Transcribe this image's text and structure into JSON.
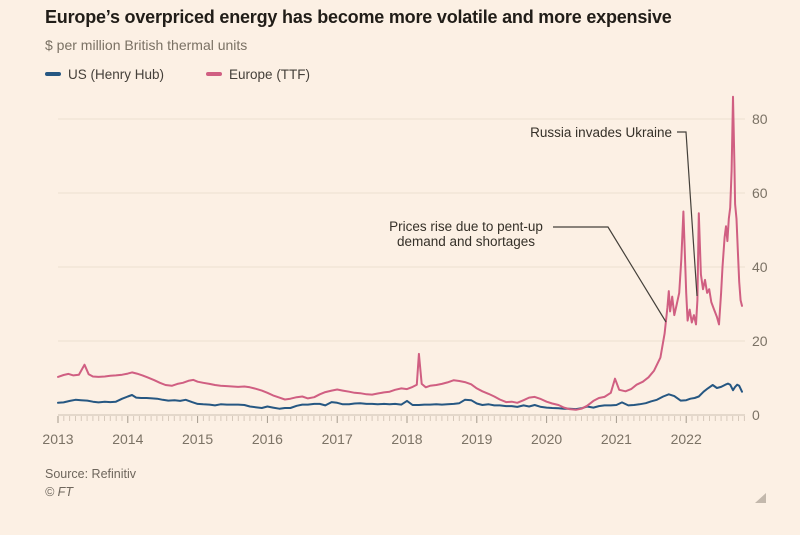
{
  "title": "Europe’s overpriced energy has become more volatile and more expensive",
  "subtitle": "$ per million British thermal units",
  "legend": {
    "us": {
      "label": "US (Henry Hub)",
      "color": "#265782"
    },
    "europe": {
      "label": "Europe (TTF)",
      "color": "#d05f82"
    }
  },
  "annotations": {
    "russia": {
      "text": "Russia invades Ukraine"
    },
    "pent_up": {
      "line1": "Prices rise due to pent-up",
      "line2": "demand and shortages"
    }
  },
  "source": "Source: Refinitiv",
  "credit": "© FT",
  "colors": {
    "background": "#fcf0e4",
    "gridline": "#ecdfd1",
    "zero_line": "#cdc0b2",
    "tick_minor": "#d6c9bb",
    "tick_year": "#a39a8d",
    "axis_label": "#7b7265",
    "annotation_line": "#44403a"
  },
  "chart_data": {
    "type": "line",
    "title": "Europe’s overpriced energy has become more volatile and more expensive",
    "ylabel": "$ per million British thermal units",
    "xlabel": "",
    "xlim": [
      2013,
      2022.8
    ],
    "ylim": [
      0,
      88
    ],
    "yticks": [
      0,
      20,
      40,
      60,
      80
    ],
    "xticks": [
      2013,
      2014,
      2015,
      2016,
      2017,
      2018,
      2019,
      2020,
      2021,
      2022
    ],
    "grid": "horizontal",
    "legend_position": "top-left",
    "annotations": [
      {
        "text": "Russia invades Ukraine",
        "points_to": {
          "x": 2022.05,
          "y": 31
        }
      },
      {
        "text": "Prices rise due to pent-up demand and shortages",
        "points_to": {
          "x": 2021.7,
          "y": 25
        }
      }
    ],
    "series": [
      {
        "name": "US (Henry Hub)",
        "color": "#265782",
        "points": [
          [
            2013,
            3.3
          ],
          [
            2013.08,
            3.4
          ],
          [
            2013.17,
            3.8
          ],
          [
            2013.25,
            4.1
          ],
          [
            2013.33,
            4
          ],
          [
            2013.42,
            3.9
          ],
          [
            2013.5,
            3.6
          ],
          [
            2013.58,
            3.4
          ],
          [
            2013.67,
            3.6
          ],
          [
            2013.75,
            3.5
          ],
          [
            2013.83,
            3.6
          ],
          [
            2013.92,
            4.4
          ],
          [
            2014,
            5
          ],
          [
            2014.06,
            5.4
          ],
          [
            2014.12,
            4.7
          ],
          [
            2014.19,
            4.6
          ],
          [
            2014.27,
            4.6
          ],
          [
            2014.35,
            4.5
          ],
          [
            2014.42,
            4.4
          ],
          [
            2014.5,
            4.1
          ],
          [
            2014.58,
            3.9
          ],
          [
            2014.67,
            4
          ],
          [
            2014.75,
            3.8
          ],
          [
            2014.83,
            4.1
          ],
          [
            2014.92,
            3.5
          ],
          [
            2015,
            3
          ],
          [
            2015.08,
            2.9
          ],
          [
            2015.17,
            2.8
          ],
          [
            2015.25,
            2.6
          ],
          [
            2015.33,
            2.9
          ],
          [
            2015.42,
            2.8
          ],
          [
            2015.5,
            2.8
          ],
          [
            2015.58,
            2.8
          ],
          [
            2015.67,
            2.7
          ],
          [
            2015.75,
            2.3
          ],
          [
            2015.83,
            2.1
          ],
          [
            2015.92,
            1.9
          ],
          [
            2016,
            2.3
          ],
          [
            2016.08,
            2
          ],
          [
            2016.17,
            1.7
          ],
          [
            2016.25,
            1.9
          ],
          [
            2016.33,
            1.9
          ],
          [
            2016.42,
            2.5
          ],
          [
            2016.5,
            2.8
          ],
          [
            2016.58,
            2.8
          ],
          [
            2016.67,
            3
          ],
          [
            2016.75,
            3
          ],
          [
            2016.83,
            2.6
          ],
          [
            2016.92,
            3.5
          ],
          [
            2017,
            3.3
          ],
          [
            2017.08,
            2.9
          ],
          [
            2017.17,
            2.9
          ],
          [
            2017.25,
            3.1
          ],
          [
            2017.33,
            3.2
          ],
          [
            2017.42,
            3
          ],
          [
            2017.5,
            3
          ],
          [
            2017.58,
            2.9
          ],
          [
            2017.67,
            3
          ],
          [
            2017.75,
            2.9
          ],
          [
            2017.83,
            3
          ],
          [
            2017.92,
            2.8
          ],
          [
            2018,
            3.8
          ],
          [
            2018.08,
            2.7
          ],
          [
            2018.17,
            2.7
          ],
          [
            2018.25,
            2.8
          ],
          [
            2018.33,
            2.8
          ],
          [
            2018.42,
            2.9
          ],
          [
            2018.5,
            2.8
          ],
          [
            2018.58,
            2.9
          ],
          [
            2018.67,
            3
          ],
          [
            2018.75,
            3.2
          ],
          [
            2018.83,
            4.1
          ],
          [
            2018.92,
            4
          ],
          [
            2019,
            3.1
          ],
          [
            2019.08,
            2.7
          ],
          [
            2019.17,
            2.9
          ],
          [
            2019.25,
            2.6
          ],
          [
            2019.33,
            2.6
          ],
          [
            2019.42,
            2.4
          ],
          [
            2019.5,
            2.4
          ],
          [
            2019.58,
            2.2
          ],
          [
            2019.67,
            2.6
          ],
          [
            2019.75,
            2.3
          ],
          [
            2019.83,
            2.7
          ],
          [
            2019.92,
            2.2
          ],
          [
            2020,
            2
          ],
          [
            2020.08,
            1.9
          ],
          [
            2020.17,
            1.8
          ],
          [
            2020.25,
            1.7
          ],
          [
            2020.33,
            1.7
          ],
          [
            2020.42,
            1.6
          ],
          [
            2020.5,
            1.8
          ],
          [
            2020.58,
            2.3
          ],
          [
            2020.67,
            2
          ],
          [
            2020.75,
            2.4
          ],
          [
            2020.83,
            2.6
          ],
          [
            2020.92,
            2.6
          ],
          [
            2021,
            2.7
          ],
          [
            2021.08,
            3.4
          ],
          [
            2021.17,
            2.6
          ],
          [
            2021.25,
            2.7
          ],
          [
            2021.33,
            2.9
          ],
          [
            2021.42,
            3.2
          ],
          [
            2021.5,
            3.7
          ],
          [
            2021.58,
            4.1
          ],
          [
            2021.67,
            5
          ],
          [
            2021.75,
            5.6
          ],
          [
            2021.83,
            5.1
          ],
          [
            2021.92,
            3.9
          ],
          [
            2022,
            4
          ],
          [
            2022.06,
            4.4
          ],
          [
            2022.12,
            4.6
          ],
          [
            2022.18,
            5
          ],
          [
            2022.25,
            6.3
          ],
          [
            2022.31,
            7.2
          ],
          [
            2022.38,
            8.1
          ],
          [
            2022.44,
            7.3
          ],
          [
            2022.5,
            7.6
          ],
          [
            2022.56,
            8.2
          ],
          [
            2022.6,
            8.5
          ],
          [
            2022.63,
            8.2
          ],
          [
            2022.67,
            6.7
          ],
          [
            2022.7,
            7.6
          ],
          [
            2022.73,
            8.2
          ],
          [
            2022.76,
            7.9
          ],
          [
            2022.8,
            6.3
          ]
        ]
      },
      {
        "name": "Europe (TTF)",
        "color": "#d05f82",
        "points": [
          [
            2013,
            10.3
          ],
          [
            2013.08,
            10.8
          ],
          [
            2013.15,
            11.1
          ],
          [
            2013.22,
            10.7
          ],
          [
            2013.3,
            10.9
          ],
          [
            2013.38,
            13.6
          ],
          [
            2013.44,
            11
          ],
          [
            2013.5,
            10.4
          ],
          [
            2013.58,
            10.3
          ],
          [
            2013.67,
            10.4
          ],
          [
            2013.75,
            10.6
          ],
          [
            2013.83,
            10.7
          ],
          [
            2013.92,
            10.9
          ],
          [
            2014,
            11.2
          ],
          [
            2014.06,
            11.5
          ],
          [
            2014.13,
            11.2
          ],
          [
            2014.21,
            10.7
          ],
          [
            2014.29,
            10.1
          ],
          [
            2014.38,
            9.4
          ],
          [
            2014.46,
            8.7
          ],
          [
            2014.54,
            8.1
          ],
          [
            2014.63,
            7.9
          ],
          [
            2014.71,
            8.4
          ],
          [
            2014.79,
            8.7
          ],
          [
            2014.88,
            9.3
          ],
          [
            2014.94,
            9.5
          ],
          [
            2015,
            9
          ],
          [
            2015.08,
            8.7
          ],
          [
            2015.17,
            8.4
          ],
          [
            2015.25,
            8.1
          ],
          [
            2015.33,
            7.9
          ],
          [
            2015.42,
            7.8
          ],
          [
            2015.5,
            7.7
          ],
          [
            2015.58,
            7.6
          ],
          [
            2015.67,
            7.7
          ],
          [
            2015.75,
            7.5
          ],
          [
            2015.83,
            7.1
          ],
          [
            2015.92,
            6.6
          ],
          [
            2016,
            6
          ],
          [
            2016.08,
            5.3
          ],
          [
            2016.17,
            4.7
          ],
          [
            2016.25,
            4.2
          ],
          [
            2016.33,
            4.4
          ],
          [
            2016.42,
            4.8
          ],
          [
            2016.5,
            5
          ],
          [
            2016.58,
            4.5
          ],
          [
            2016.67,
            4.8
          ],
          [
            2016.75,
            5.6
          ],
          [
            2016.83,
            6.2
          ],
          [
            2016.92,
            6.6
          ],
          [
            2017,
            6.9
          ],
          [
            2017.08,
            6.6
          ],
          [
            2017.17,
            6.3
          ],
          [
            2017.25,
            6
          ],
          [
            2017.33,
            5.9
          ],
          [
            2017.42,
            5.6
          ],
          [
            2017.5,
            5.5
          ],
          [
            2017.58,
            5.8
          ],
          [
            2017.67,
            6.1
          ],
          [
            2017.75,
            6.3
          ],
          [
            2017.83,
            6.8
          ],
          [
            2017.92,
            7.2
          ],
          [
            2018,
            7
          ],
          [
            2018.08,
            7.6
          ],
          [
            2018.14,
            8.2
          ],
          [
            2018.17,
            16.5
          ],
          [
            2018.21,
            8.4
          ],
          [
            2018.27,
            7.5
          ],
          [
            2018.33,
            7.9
          ],
          [
            2018.42,
            8.1
          ],
          [
            2018.5,
            8.4
          ],
          [
            2018.58,
            8.8
          ],
          [
            2018.67,
            9.4
          ],
          [
            2018.75,
            9.2
          ],
          [
            2018.83,
            8.9
          ],
          [
            2018.92,
            8.3
          ],
          [
            2019,
            7.2
          ],
          [
            2019.08,
            6.4
          ],
          [
            2019.17,
            5.7
          ],
          [
            2019.25,
            5
          ],
          [
            2019.33,
            4.2
          ],
          [
            2019.42,
            3.5
          ],
          [
            2019.5,
            3.6
          ],
          [
            2019.58,
            3.3
          ],
          [
            2019.67,
            4
          ],
          [
            2019.75,
            4.7
          ],
          [
            2019.83,
            4.9
          ],
          [
            2019.92,
            4.3
          ],
          [
            2020,
            3.6
          ],
          [
            2020.08,
            3.1
          ],
          [
            2020.17,
            2.7
          ],
          [
            2020.25,
            2
          ],
          [
            2020.33,
            1.6
          ],
          [
            2020.42,
            1.4
          ],
          [
            2020.5,
            1.7
          ],
          [
            2020.58,
            2.5
          ],
          [
            2020.67,
            3.8
          ],
          [
            2020.75,
            4.6
          ],
          [
            2020.83,
            4.9
          ],
          [
            2020.92,
            6
          ],
          [
            2020.98,
            9.8
          ],
          [
            2021.04,
            6.8
          ],
          [
            2021.13,
            6.4
          ],
          [
            2021.21,
            7
          ],
          [
            2021.29,
            8.2
          ],
          [
            2021.38,
            9
          ],
          [
            2021.46,
            10.2
          ],
          [
            2021.54,
            12
          ],
          [
            2021.63,
            15.5
          ],
          [
            2021.69,
            22
          ],
          [
            2021.73,
            29
          ],
          [
            2021.75,
            33.5
          ],
          [
            2021.77,
            28
          ],
          [
            2021.8,
            32
          ],
          [
            2021.83,
            27
          ],
          [
            2021.86,
            29.5
          ],
          [
            2021.9,
            33
          ],
          [
            2021.93,
            42
          ],
          [
            2021.96,
            55
          ],
          [
            2022,
            33
          ],
          [
            2022.02,
            25.5
          ],
          [
            2022.05,
            28.5
          ],
          [
            2022.08,
            25
          ],
          [
            2022.11,
            27
          ],
          [
            2022.14,
            24.5
          ],
          [
            2022.16,
            31
          ],
          [
            2022.18,
            54.5
          ],
          [
            2022.21,
            38
          ],
          [
            2022.24,
            34
          ],
          [
            2022.27,
            36.5
          ],
          [
            2022.3,
            33
          ],
          [
            2022.33,
            34
          ],
          [
            2022.36,
            30.5
          ],
          [
            2022.4,
            28.5
          ],
          [
            2022.44,
            26.5
          ],
          [
            2022.47,
            24.5
          ],
          [
            2022.5,
            33
          ],
          [
            2022.52,
            40
          ],
          [
            2022.55,
            48
          ],
          [
            2022.57,
            51
          ],
          [
            2022.59,
            47
          ],
          [
            2022.61,
            53
          ],
          [
            2022.63,
            56
          ],
          [
            2022.65,
            66
          ],
          [
            2022.67,
            86
          ],
          [
            2022.69,
            68
          ],
          [
            2022.7,
            57
          ],
          [
            2022.72,
            53
          ],
          [
            2022.74,
            44
          ],
          [
            2022.76,
            36
          ],
          [
            2022.78,
            31
          ],
          [
            2022.8,
            29.5
          ]
        ]
      }
    ]
  }
}
